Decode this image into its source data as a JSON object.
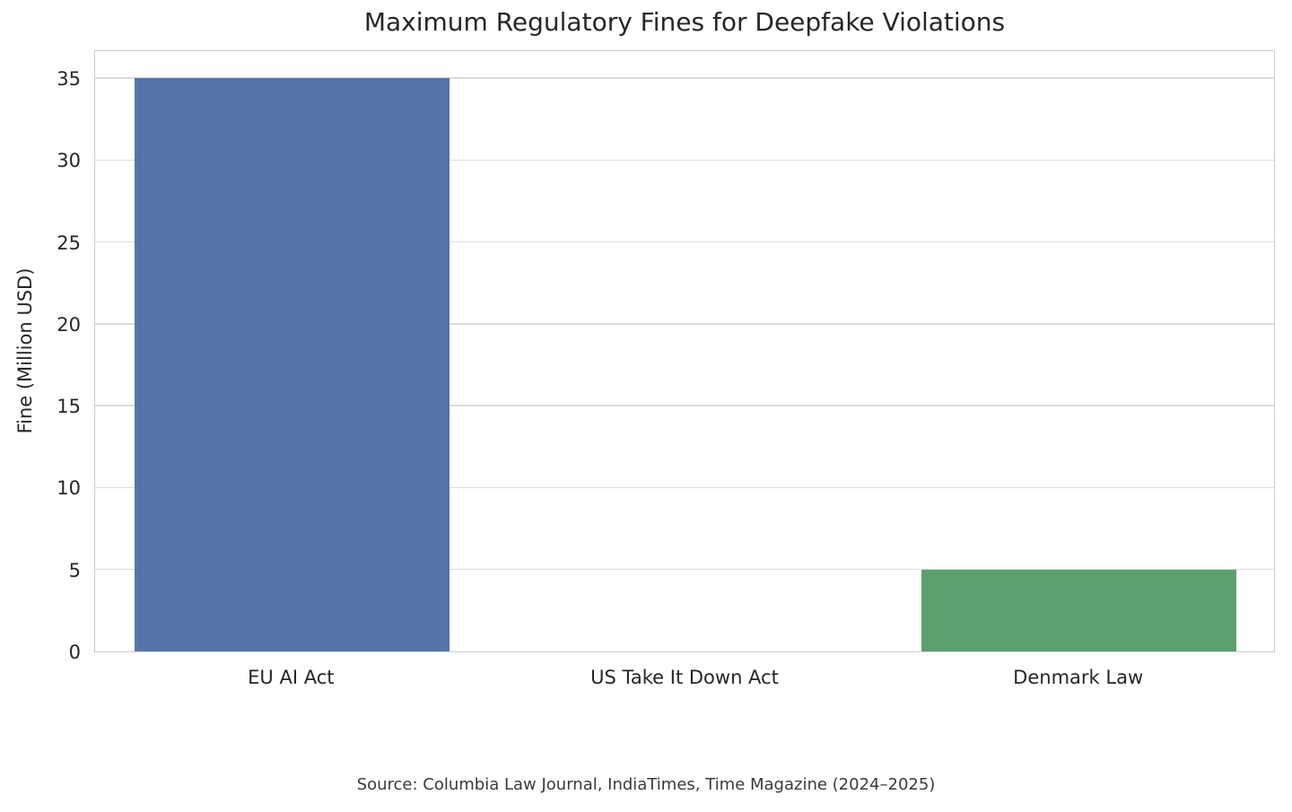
{
  "source_note": "Source: Columbia Law Journal, IndiaTimes, Time Magazine (2024–2025)",
  "chart_data": {
    "type": "bar",
    "title": "Maximum Regulatory Fines for Deepfake Violations",
    "categories": [
      "EU AI Act",
      "US Take It Down Act",
      "Denmark Law"
    ],
    "values": [
      35,
      0,
      5
    ],
    "bar_colors": [
      "#5574a9",
      "#dd8452",
      "#5d9e6e"
    ],
    "xlabel": "",
    "ylabel": "Fine (Million USD)",
    "ylim": [
      0,
      36.75
    ],
    "yticks": [
      0,
      5,
      10,
      15,
      20,
      25,
      30,
      35
    ],
    "grid": "horizontal-only",
    "grid_color": "#dcdcdc",
    "spine_color": "#cccccc",
    "text_color": "#262626",
    "background_color": "#ffffff",
    "legend": "none",
    "bar_width_fraction": 0.8
  }
}
